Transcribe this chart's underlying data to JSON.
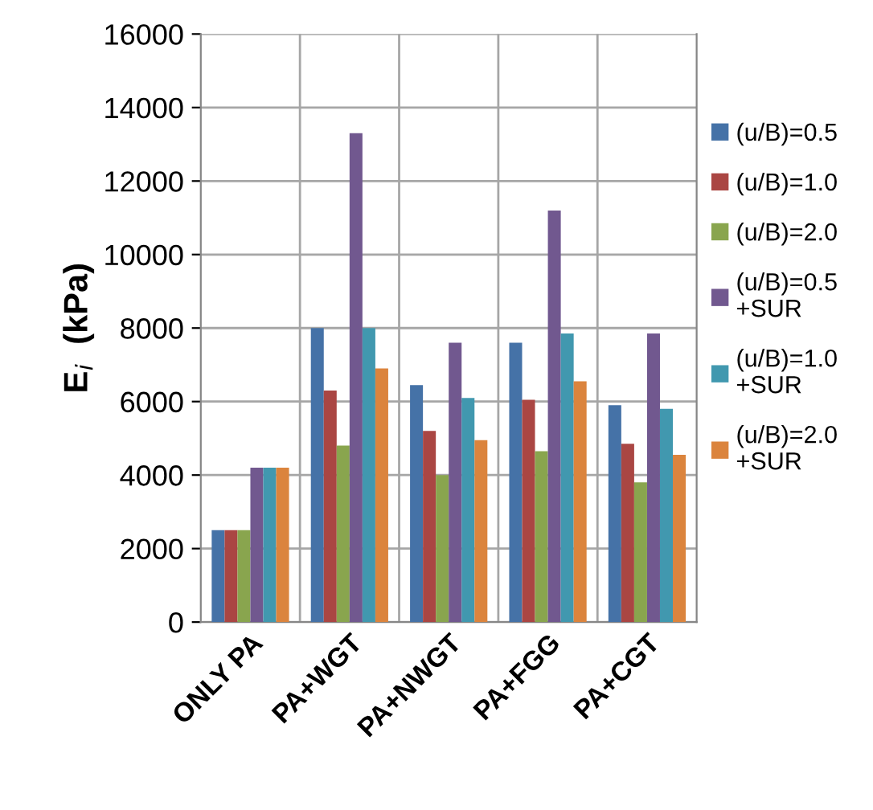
{
  "chart_data": {
    "type": "bar",
    "ylabel": "E$_{i}$  (kPa)",
    "categories": [
      "ONLY PA",
      "PA+WGT",
      "PA+NWGT",
      "PA+FGG",
      "PA+CGT"
    ],
    "series": [
      {
        "name": "(u/B)=0.5",
        "color": "#4572a7",
        "values": [
          2500,
          8000,
          6450,
          7600,
          5900
        ]
      },
      {
        "name": "(u/B)=1.0",
        "color": "#aa4643",
        "values": [
          2500,
          6300,
          5200,
          6050,
          4850
        ]
      },
      {
        "name": "(u/B)=2.0",
        "color": "#89a54e",
        "values": [
          2500,
          4800,
          4000,
          4650,
          3800
        ]
      },
      {
        "name": "(u/B)=0.5\n+SUR",
        "color": "#71588f",
        "values": [
          4200,
          13300,
          7600,
          11200,
          7850
        ]
      },
      {
        "name": "(u/B)=1.0\n+SUR",
        "color": "#4198af",
        "values": [
          4200,
          8000,
          6100,
          7850,
          5800
        ]
      },
      {
        "name": "(u/B)=2.0\n+SUR",
        "color": "#db843d",
        "values": [
          4200,
          6900,
          4950,
          6550,
          4550
        ]
      }
    ],
    "ylim": [
      0,
      16000
    ],
    "yticks": [
      0,
      2000,
      4000,
      6000,
      8000,
      10000,
      12000,
      14000,
      16000
    ],
    "grid": true,
    "legend": "right"
  }
}
